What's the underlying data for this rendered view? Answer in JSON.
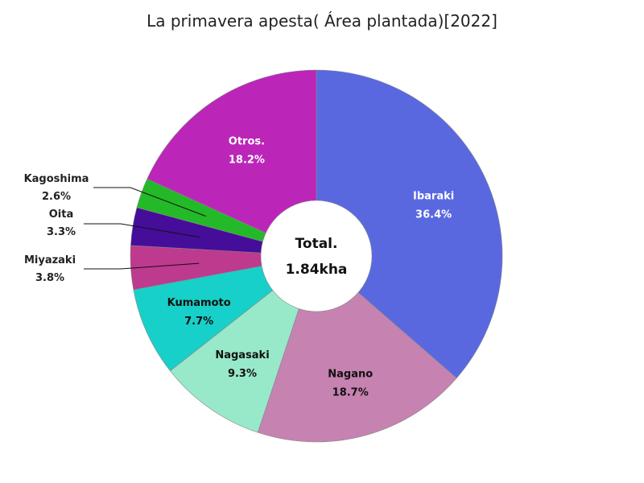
{
  "chart_data": {
    "type": "pie",
    "title": "La primavera apesta( Área plantada)[2022]",
    "center_label": "Total.",
    "center_value": "1.84kha",
    "slices": [
      {
        "name": "Ibaraki",
        "value": 36.4,
        "percent_label": "36.4%",
        "color": "#5a68e0",
        "label_color": "#ffffff",
        "label_position": "inside"
      },
      {
        "name": "Nagano",
        "value": 18.7,
        "percent_label": "18.7%",
        "color": "#c682b0",
        "label_color": "#111111",
        "label_position": "inside"
      },
      {
        "name": "Nagasaki",
        "value": 9.3,
        "percent_label": "9.3%",
        "color": "#98e9c9",
        "label_color": "#111111",
        "label_position": "inside"
      },
      {
        "name": "Kumamoto",
        "value": 7.7,
        "percent_label": "7.7%",
        "color": "#17d0c9",
        "label_color": "#111111",
        "label_position": "inside"
      },
      {
        "name": "Miyazaki",
        "value": 3.8,
        "percent_label": "3.8%",
        "color": "#bd3a8e",
        "label_color": "#111111",
        "label_position": "outside"
      },
      {
        "name": "Oita",
        "value": 3.3,
        "percent_label": "3.3%",
        "color": "#460d9a",
        "label_color": "#111111",
        "label_position": "outside"
      },
      {
        "name": "Kagoshima",
        "value": 2.6,
        "percent_label": "2.6%",
        "color": "#24b928",
        "label_color": "#111111",
        "label_position": "outside"
      },
      {
        "name": "Otros.",
        "value": 18.2,
        "percent_label": "18.2%",
        "color": "#bb26b9",
        "label_color": "#ffffff",
        "label_position": "inside"
      }
    ]
  }
}
